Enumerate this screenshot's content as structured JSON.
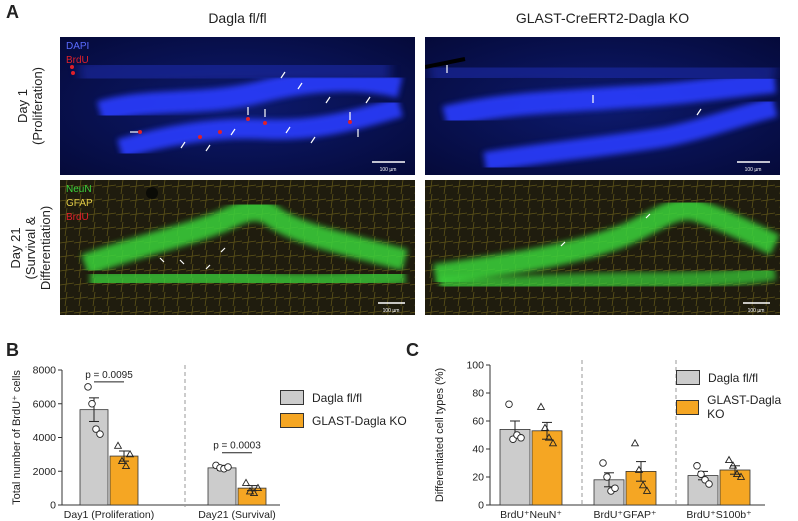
{
  "panel_a": {
    "letter": "A",
    "col_titles": [
      "Dagla fl/fl",
      "GLAST-CreERT2-Dagla KO"
    ],
    "row_labels": [
      [
        "Day 1",
        "(Proliferation)"
      ],
      [
        "Day 21",
        "(Survival &",
        "Differentiation)"
      ]
    ],
    "channels_row1": [
      "DAPI",
      "BrdU"
    ],
    "channels_row2": [
      "NeuN",
      "GFAP",
      "BrdU"
    ],
    "scale_bar_label": "100 µm",
    "colors": {
      "dapi": "#2b3cff",
      "neun": "#3bd43b",
      "gfap": "#d9c23a",
      "brdu": "#e0202a"
    }
  },
  "panel_b": {
    "letter": "B",
    "legend": [
      "Dagla fl/fl",
      "GLAST-Dagla KO"
    ],
    "colors": {
      "control": "#cccccc",
      "ko": "#f5a623"
    },
    "stats": [
      "p = 0.0095",
      "p = 0.0003"
    ]
  },
  "panel_c": {
    "letter": "C",
    "legend": [
      "Dagla fl/fl",
      "GLAST-Dagla KO"
    ],
    "colors": {
      "control": "#cccccc",
      "ko": "#f5a623"
    }
  },
  "chart_data": [
    {
      "type": "bar",
      "ylabel": "Total number of BrdU⁺ cells",
      "categories": [
        "Day1 (Proliferation)",
        "Day21 (Survival)"
      ],
      "ylim": [
        0,
        8000
      ],
      "yticks": [
        0,
        2000,
        4000,
        6000,
        8000
      ],
      "series": [
        {
          "name": "Dagla fl/fl",
          "values": [
            5650,
            2200
          ],
          "errors": [
            700,
            150
          ],
          "points": [
            [
              7000,
              6000,
              4500,
              4200
            ],
            [
              2350,
              2200,
              2150,
              2250
            ]
          ]
        },
        {
          "name": "GLAST-Dagla KO",
          "values": [
            2900,
            1000
          ],
          "errors": [
            300,
            150
          ],
          "points": [
            [
              3500,
              2600,
              2300,
              3000
            ],
            [
              1300,
              800,
              700,
              1000
            ]
          ]
        }
      ]
    },
    {
      "type": "bar",
      "ylabel": "Differentiated cell types (%)",
      "categories": [
        "BrdU⁺NeuN⁺",
        "BrdU⁺GFAP⁺",
        "BrdU⁺S100b⁺"
      ],
      "ylim": [
        0,
        100
      ],
      "yticks": [
        0,
        20,
        40,
        60,
        80,
        100
      ],
      "series": [
        {
          "name": "Dagla fl/fl",
          "values": [
            54,
            18,
            21
          ],
          "errors": [
            6,
            5,
            3
          ],
          "points": [
            [
              72,
              47,
              50,
              48
            ],
            [
              30,
              20,
              10,
              12
            ],
            [
              28,
              22,
              18,
              15
            ]
          ]
        },
        {
          "name": "GLAST-Dagla KO",
          "values": [
            53,
            24,
            25
          ],
          "errors": [
            6,
            7,
            3
          ],
          "points": [
            [
              70,
              55,
              48,
              44
            ],
            [
              44,
              25,
              14,
              10
            ],
            [
              32,
              28,
              22,
              20
            ]
          ]
        }
      ]
    }
  ]
}
